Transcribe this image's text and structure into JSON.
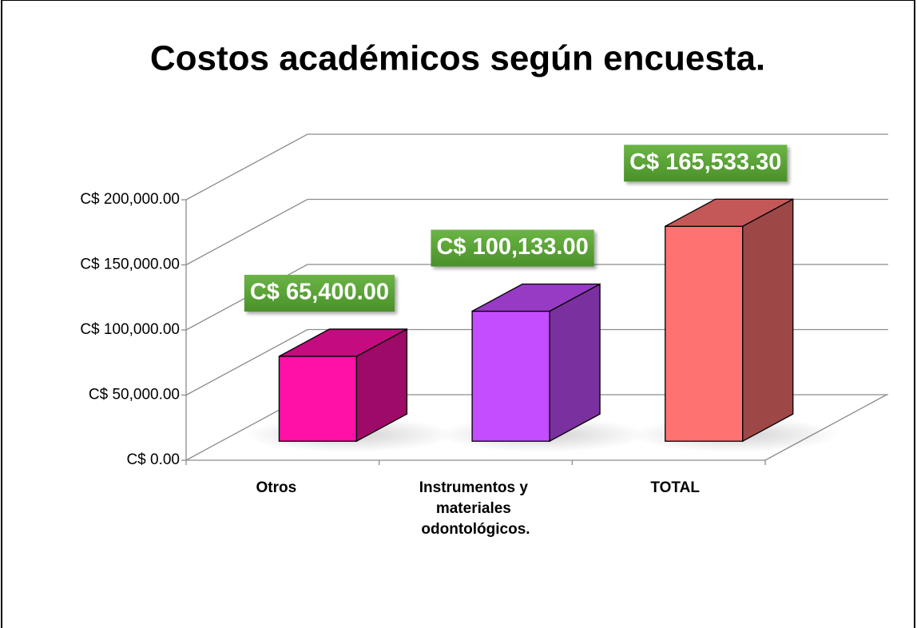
{
  "chart_data": {
    "type": "bar3d",
    "title": "Costos académicos según encuesta.",
    "categories": [
      "Otros",
      "Instrumentos y materiales odontológicos.",
      "TOTAL"
    ],
    "values": [
      65400,
      100133,
      165533.3
    ],
    "value_labels": [
      "C$ 65,400.00",
      "C$ 100,133.00",
      "C$ 165,533.30"
    ],
    "colors": [
      "#ff10a6",
      "#c44dff",
      "#ff7272"
    ],
    "ylim": [
      0,
      200000
    ],
    "yticks": [
      {
        "value": 0,
        "label": "C$ 0.00"
      },
      {
        "value": 50000,
        "label": "C$ 50,000.00"
      },
      {
        "value": 100000,
        "label": "C$ 100,000.00"
      },
      {
        "value": 150000,
        "label": "C$ 150,000.00"
      },
      {
        "value": 200000,
        "label": "C$ 200,000.00"
      }
    ],
    "grid": true
  }
}
